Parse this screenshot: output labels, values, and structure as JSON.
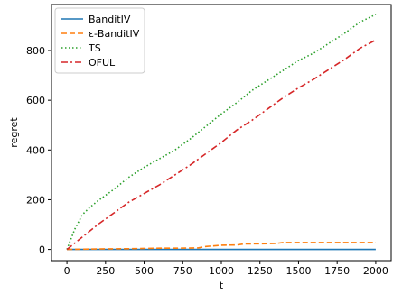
{
  "chart_data": {
    "type": "line",
    "title": "",
    "xlabel": "t",
    "ylabel": "regret",
    "xlim": [
      -100,
      2100
    ],
    "ylim": [
      -45,
      985
    ],
    "x_ticks": [
      0,
      250,
      500,
      750,
      1000,
      1250,
      1500,
      1750,
      2000
    ],
    "y_ticks": [
      0,
      200,
      400,
      600,
      800
    ],
    "grid": false,
    "legend_position": "top-left",
    "series": [
      {
        "name": "BanditIV",
        "color": "#1f77b4",
        "style": "solid",
        "x": [
          0,
          250,
          500,
          750,
          1000,
          1250,
          1500,
          1750,
          2000
        ],
        "y": [
          0,
          0,
          0,
          0,
          0,
          0,
          0,
          0,
          0
        ]
      },
      {
        "name": "ε-BanditIV",
        "color": "#ff7f0e",
        "style": "dashed",
        "x": [
          0,
          100,
          200,
          400,
          600,
          700,
          850,
          900,
          1000,
          1100,
          1150,
          1250,
          1350,
          1400,
          1500,
          1700,
          2000
        ],
        "y": [
          0,
          1,
          2,
          3,
          5,
          5,
          6,
          12,
          17,
          18,
          22,
          23,
          24,
          28,
          28,
          28,
          28
        ]
      },
      {
        "name": "TS",
        "color": "#2ca02c",
        "style": "dotted",
        "x": [
          0,
          50,
          100,
          150,
          200,
          300,
          400,
          500,
          600,
          700,
          800,
          900,
          1000,
          1100,
          1200,
          1300,
          1400,
          1500,
          1600,
          1700,
          1800,
          1900,
          2000
        ],
        "y": [
          0,
          80,
          140,
          170,
          195,
          240,
          290,
          330,
          365,
          400,
          445,
          495,
          545,
          590,
          640,
          680,
          720,
          760,
          790,
          830,
          870,
          915,
          945
        ]
      },
      {
        "name": "OFUL",
        "color": "#d62728",
        "style": "dashdot",
        "x": [
          0,
          100,
          200,
          300,
          400,
          500,
          600,
          700,
          800,
          900,
          1000,
          1100,
          1200,
          1300,
          1400,
          1500,
          1600,
          1700,
          1800,
          1900,
          2000
        ],
        "y": [
          0,
          50,
          100,
          145,
          190,
          225,
          260,
          300,
          340,
          385,
          430,
          480,
          520,
          565,
          610,
          650,
          685,
          725,
          765,
          810,
          842
        ]
      }
    ]
  }
}
